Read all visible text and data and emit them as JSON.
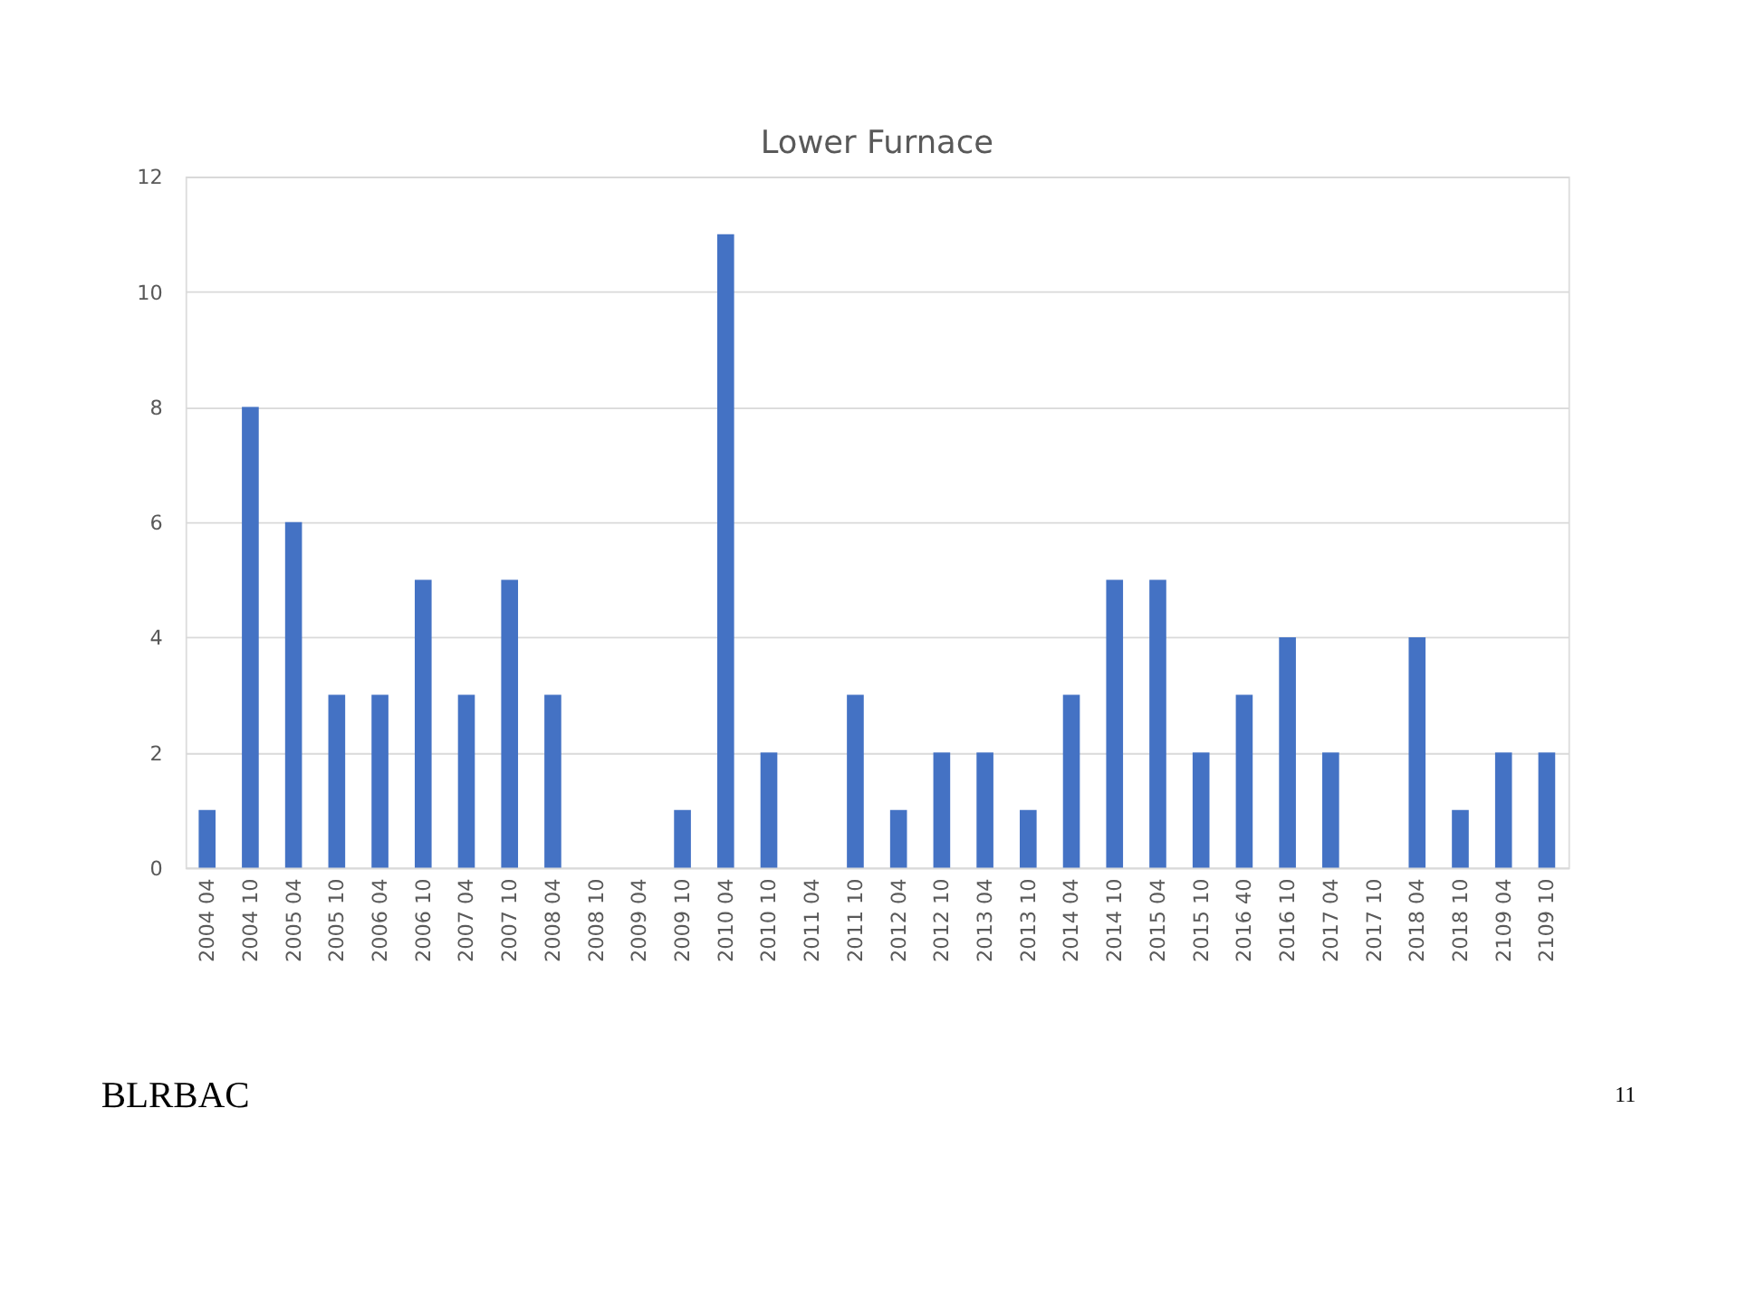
{
  "chart_data": {
    "type": "bar",
    "title": "Lower Furnace",
    "categories": [
      "2004 04",
      "2004 10",
      "2005 04",
      "2005 10",
      "2006 04",
      "2006 10",
      "2007 04",
      "2007 10",
      "2008 04",
      "2008 10",
      "2009 04",
      "2009 10",
      "2010 04",
      "2010 10",
      "2011 04",
      "2011 10",
      "2012 04",
      "2012 10",
      "2013 04",
      "2013 10",
      "2014 04",
      "2014 10",
      "2015 04",
      "2015 10",
      "2016 40",
      "2016 10",
      "2017 04",
      "2017 10",
      "2018 04",
      "2018 10",
      "2109 04",
      "2109 10"
    ],
    "values": [
      1,
      8,
      6,
      3,
      3,
      5,
      3,
      5,
      3,
      0,
      0,
      1,
      11,
      2,
      0,
      3,
      1,
      2,
      2,
      1,
      3,
      5,
      5,
      2,
      3,
      4,
      2,
      0,
      4,
      1,
      2,
      2
    ],
    "color": "#4472c4",
    "ylim": [
      0,
      12
    ],
    "yticks": [
      0,
      2,
      4,
      6,
      8,
      10,
      12
    ],
    "grid": "y",
    "annotations": [
      "BLRBAC",
      "11"
    ]
  }
}
